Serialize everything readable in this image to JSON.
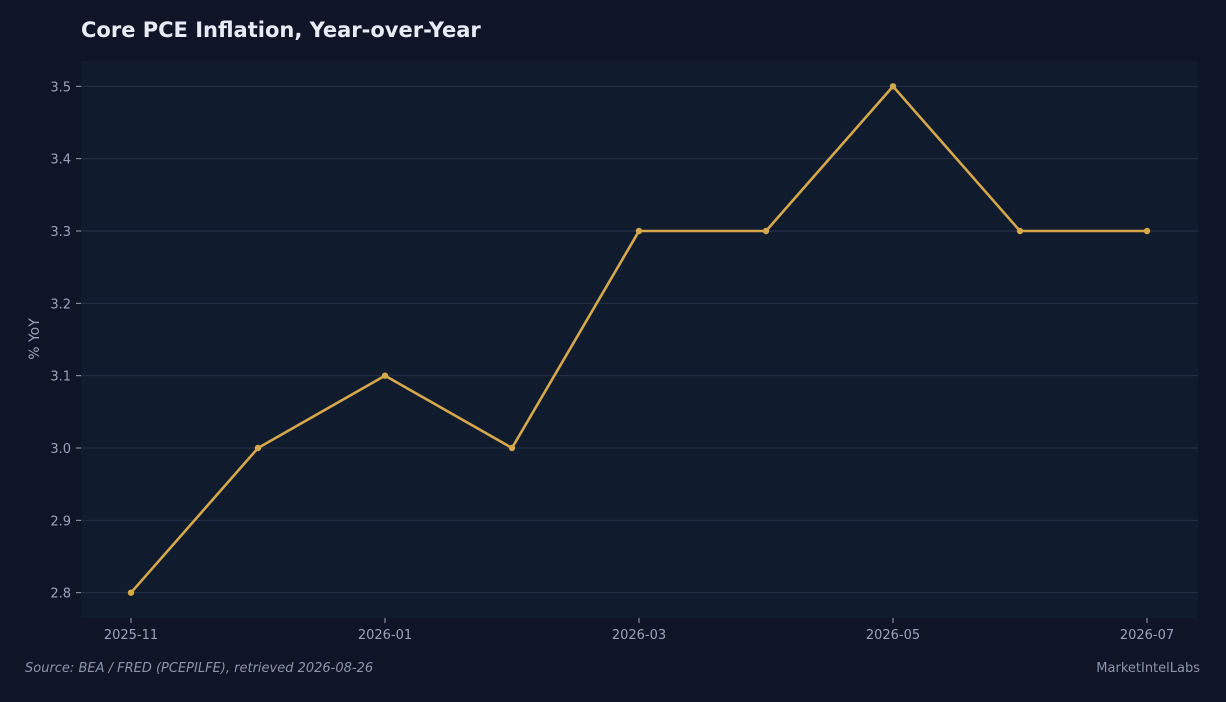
{
  "chart_data": {
    "type": "line",
    "title": "Core PCE Inflation, Year-over-Year",
    "xlabel": "",
    "ylabel": "% YoY",
    "x": [
      "2025-11",
      "2025-12",
      "2026-01",
      "2026-02",
      "2026-03",
      "2026-04",
      "2026-05",
      "2026-06",
      "2026-07"
    ],
    "series": [
      {
        "values": [
          2.8,
          3.0,
          3.1,
          3.0,
          3.3,
          3.3,
          3.5,
          3.3,
          3.3
        ]
      }
    ],
    "xticks": [
      "2025-11",
      "2026-01",
      "2026-03",
      "2026-05",
      "2026-07"
    ],
    "yticks": [
      "2.8",
      "2.9",
      "3.0",
      "3.1",
      "3.2",
      "3.3",
      "3.4",
      "3.5"
    ],
    "ylim": [
      2.765,
      3.535
    ],
    "grid": "horizontal",
    "legend": "none"
  },
  "footer": {
    "source": "Source: BEA / FRED (PCEPILFE), retrieved 2026-08-26",
    "brand": "MarketIntelLabs"
  },
  "colors": {
    "page_background": "#0f1526",
    "plot_background": "#111b2e",
    "gridline": "#26314a",
    "line": "#d4a84b",
    "tick_text": "#9aa3b5",
    "title_text": "#e6ebf5"
  }
}
